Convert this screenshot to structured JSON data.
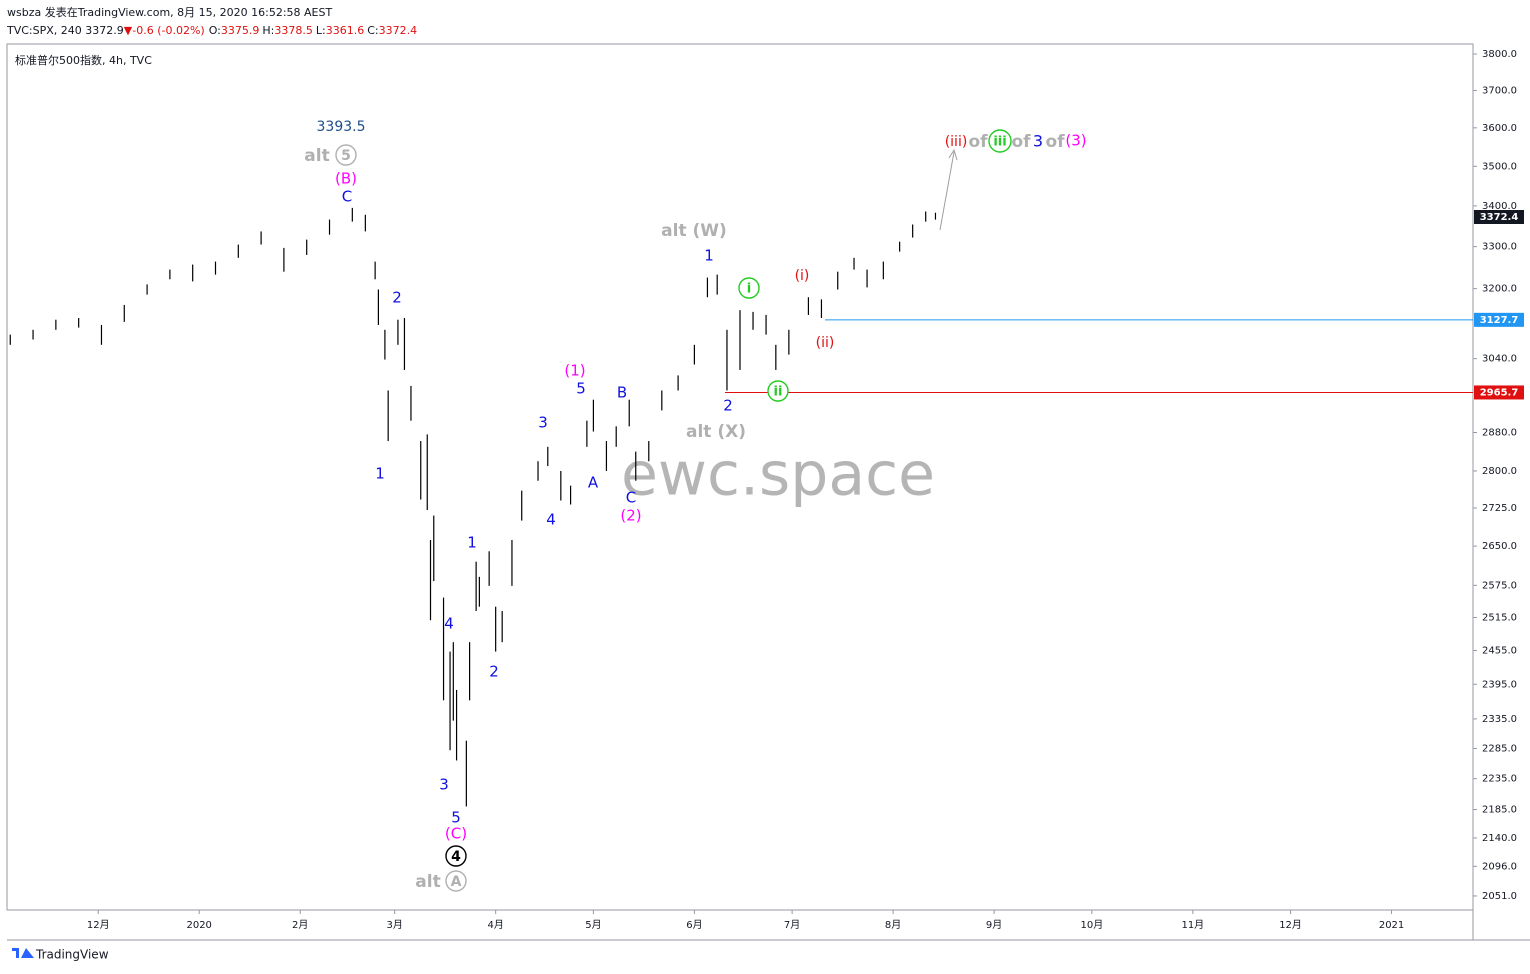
{
  "header": {
    "line1": "wsbza 发表在TradingView.com, 8月 15, 2020 16:52:58 AEST",
    "symbol": "TVC:SPX, 240 3372.9",
    "arrow": "▼",
    "change": "-0.6 (-0.02%)",
    "ohlc": [
      {
        "label": "O:",
        "value": 3375.9
      },
      {
        "label": "H:",
        "value": 3378.5
      },
      {
        "label": "L:",
        "value": 3361.6
      },
      {
        "label": "C:",
        "value": 3372.4
      }
    ]
  },
  "footer": "TradingView",
  "chart_data": {
    "type": "ohlc",
    "title": "标准普尔500指数, 4h, TVC",
    "watermark": "ewc.space",
    "log_scale": true,
    "color": "#000000",
    "x": [
      "2019-11-04",
      "2019-11-11",
      "2019-11-18",
      "2019-11-25",
      "2019-12-02",
      "2019-12-09",
      "2019-12-16",
      "2019-12-23",
      "2019-12-30",
      "2020-01-06",
      "2020-01-13",
      "2020-01-20",
      "2020-01-27",
      "2020-02-03",
      "2020-02-10",
      "2020-02-17",
      "2020-02-21",
      "2020-02-24",
      "2020-02-25",
      "2020-02-27",
      "2020-02-28",
      "2020-03-02",
      "2020-03-04",
      "2020-03-06",
      "2020-03-09",
      "2020-03-11",
      "2020-03-12",
      "2020-03-13",
      "2020-03-16",
      "2020-03-18",
      "2020-03-19",
      "2020-03-20",
      "2020-03-23",
      "2020-03-24",
      "2020-03-26",
      "2020-03-27",
      "2020-03-30",
      "2020-04-01",
      "2020-04-03",
      "2020-04-06",
      "2020-04-09",
      "2020-04-14",
      "2020-04-17",
      "2020-04-21",
      "2020-04-24",
      "2020-04-29",
      "2020-05-01",
      "2020-05-05",
      "2020-05-08",
      "2020-05-12",
      "2020-05-14",
      "2020-05-18",
      "2020-05-22",
      "2020-05-27",
      "2020-06-01",
      "2020-06-05",
      "2020-06-08",
      "2020-06-11",
      "2020-06-15",
      "2020-06-19",
      "2020-06-23",
      "2020-06-26",
      "2020-06-30",
      "2020-07-06",
      "2020-07-10",
      "2020-07-15",
      "2020-07-20",
      "2020-07-24",
      "2020-07-29",
      "2020-08-03",
      "2020-08-07",
      "2020-08-11",
      "2020-08-14"
    ],
    "high": [
      3094,
      3105,
      3128,
      3132,
      3116,
      3162,
      3210,
      3245,
      3257,
      3264,
      3305,
      3337,
      3297,
      3317,
      3366,
      3395,
      3378,
      3264,
      3198,
      3105,
      2970,
      3128,
      3132,
      2980,
      2862,
      2876,
      2662,
      2710,
      2552,
      2453,
      2470,
      2385,
      2298,
      2470,
      2620,
      2591,
      2640,
      2535,
      2527,
      2662,
      2760,
      2820,
      2850,
      2800,
      2770,
      2905,
      2950,
      2862,
      2893,
      2950,
      2840,
      2862,
      2970,
      3003,
      3071,
      3226,
      3233,
      3105,
      3150,
      3146,
      3139,
      3071,
      3105,
      3180,
      3175,
      3240,
      3273,
      3245,
      3264,
      3312,
      3354,
      3386,
      3383
    ],
    "low": [
      3071,
      3083,
      3105,
      3110,
      3071,
      3123,
      3186,
      3222,
      3217,
      3233,
      3273,
      3305,
      3240,
      3280,
      3329,
      3361,
      3337,
      3222,
      3116,
      3038,
      2862,
      3071,
      3015,
      2905,
      2742,
      2721,
      2510,
      2583,
      2367,
      2282,
      2332,
      2265,
      2190,
      2367,
      2527,
      2535,
      2574,
      2453,
      2470,
      2574,
      2700,
      2780,
      2810,
      2740,
      2732,
      2850,
      2882,
      2800,
      2850,
      2893,
      2780,
      2820,
      2927,
      2970,
      3027,
      3180,
      3186,
      2970,
      3015,
      3105,
      3094,
      3015,
      3049,
      3139,
      3132,
      3198,
      3245,
      3203,
      3222,
      3288,
      3322,
      3361,
      3366
    ],
    "xlim": [
      "2019-11-03",
      "2021-01-26"
    ],
    "xticks": [
      {
        "value": "2019-12-01",
        "label": "12月"
      },
      {
        "value": "2020-01-01",
        "label": "2020"
      },
      {
        "value": "2020-02-01",
        "label": "2月"
      },
      {
        "value": "2020-03-01",
        "label": "3月"
      },
      {
        "value": "2020-04-01",
        "label": "4月"
      },
      {
        "value": "2020-05-01",
        "label": "5月"
      },
      {
        "value": "2020-06-01",
        "label": "6月"
      },
      {
        "value": "2020-07-01",
        "label": "7月"
      },
      {
        "value": "2020-08-01",
        "label": "8月"
      },
      {
        "value": "2020-09-01",
        "label": "9月"
      },
      {
        "value": "2020-10-01",
        "label": "10月"
      },
      {
        "value": "2020-11-01",
        "label": "11月"
      },
      {
        "value": "2020-12-01",
        "label": "12月"
      },
      {
        "value": "2021-01-01",
        "label": "2021"
      }
    ],
    "ylim": [
      2030,
      3828
    ],
    "yticks": [
      {
        "value": 3800,
        "label": "3800.0"
      },
      {
        "value": 3700,
        "label": "3700.0"
      },
      {
        "value": 3600,
        "label": "3600.0"
      },
      {
        "value": 3500,
        "label": "3500.0"
      },
      {
        "value": 3400,
        "label": "3400.0"
      },
      {
        "value": 3300,
        "label": "3300.0"
      },
      {
        "value": 3200,
        "label": "3200.0"
      },
      {
        "value": 3040,
        "label": "3040.0"
      },
      {
        "value": 2880,
        "label": "2880.0"
      },
      {
        "value": 2800,
        "label": "2800.0"
      },
      {
        "value": 2725,
        "label": "2725.0"
      },
      {
        "value": 2650,
        "label": "2650.0"
      },
      {
        "value": 2575,
        "label": "2575.0"
      },
      {
        "value": 2515,
        "label": "2515.0"
      },
      {
        "value": 2455,
        "label": "2455.0"
      },
      {
        "value": 2395,
        "label": "2395.0"
      },
      {
        "value": 2335,
        "label": "2335.0"
      },
      {
        "value": 2285,
        "label": "2285.0"
      },
      {
        "value": 2235,
        "label": "2235.0"
      },
      {
        "value": 2185,
        "label": "2185.0"
      },
      {
        "value": 2140,
        "label": "2140.0"
      },
      {
        "value": 2096,
        "label": "2096.0"
      },
      {
        "value": 2051,
        "label": "2051.0"
      }
    ],
    "last_price": {
      "value": 3372.4,
      "color": "#131722"
    },
    "levels": [
      {
        "value": 3127.7,
        "color": "#2196f3"
      },
      {
        "value": 2965.7,
        "color": "#e01010"
      }
    ],
    "annotations": [
      {
        "text": "3393.5",
        "color": "#1f4e8c"
      },
      {
        "text": "alt",
        "color": "#b0b0b0"
      },
      {
        "text": "5",
        "color": "#b0b0b0",
        "circled": true
      },
      {
        "text": "(B)",
        "color": "#ff00ff"
      },
      {
        "text": "C",
        "color": "#1010e0"
      },
      {
        "text": "2",
        "color": "#1010e0"
      },
      {
        "text": "1",
        "color": "#1010e0"
      },
      {
        "text": "1",
        "color": "#1010e0"
      },
      {
        "text": "4",
        "color": "#1010e0"
      },
      {
        "text": "2",
        "color": "#1010e0"
      },
      {
        "text": "3",
        "color": "#1010e0"
      },
      {
        "text": "5",
        "color": "#1010e0"
      },
      {
        "text": "(C)",
        "color": "#ff00ff"
      },
      {
        "text": "4",
        "color": "#000000",
        "circled": true
      },
      {
        "text": "alt",
        "color": "#b0b0b0"
      },
      {
        "text": "A",
        "color": "#b0b0b0",
        "circled": true
      },
      {
        "text": "(1)",
        "color": "#ff00ff"
      },
      {
        "text": "5",
        "color": "#1010e0"
      },
      {
        "text": "3",
        "color": "#1010e0"
      },
      {
        "text": "4",
        "color": "#1010e0"
      },
      {
        "text": "A",
        "color": "#1010e0"
      },
      {
        "text": "B",
        "color": "#1010e0"
      },
      {
        "text": "C",
        "color": "#1010e0"
      },
      {
        "text": "(2)",
        "color": "#ff00ff"
      },
      {
        "text": "alt (W)",
        "color": "#b0b0b0"
      },
      {
        "text": "1",
        "color": "#1010e0"
      },
      {
        "text": "2",
        "color": "#1010e0"
      },
      {
        "text": "alt (X)",
        "color": "#b0b0b0"
      },
      {
        "text": "i",
        "color": "#22cc22",
        "circled": true
      },
      {
        "text": "ii",
        "color": "#22cc22",
        "circled": true
      },
      {
        "text": "(i)",
        "color": "#e01010"
      },
      {
        "text": "(ii)",
        "color": "#e01010"
      },
      {
        "text": "(iii)",
        "color": "#e01010"
      },
      {
        "text": "of",
        "color": "#b0b0b0"
      },
      {
        "text": "iii",
        "color": "#22cc22",
        "circled": true
      },
      {
        "text": "of",
        "color": "#b0b0b0"
      },
      {
        "text": "3",
        "color": "#1010e0"
      },
      {
        "text": "of",
        "color": "#b0b0b0"
      },
      {
        "text": "(3)",
        "color": "#ff00ff"
      }
    ]
  }
}
